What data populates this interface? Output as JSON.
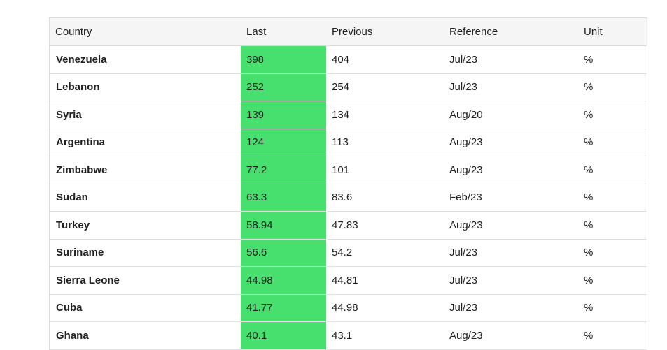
{
  "table": {
    "header": [
      "Country",
      "Last",
      "Previous",
      "Reference",
      "Unit"
    ],
    "rows": [
      [
        "Venezuela",
        "398",
        "404",
        "Jul/23",
        "%"
      ],
      [
        "Lebanon",
        "252",
        "254",
        "Jul/23",
        "%"
      ],
      [
        "Syria",
        "139",
        "134",
        "Aug/20",
        "%"
      ],
      [
        "Argentina",
        "124",
        "113",
        "Aug/23",
        "%"
      ],
      [
        "Zimbabwe",
        "77.2",
        "101",
        "Aug/23",
        "%"
      ],
      [
        "Sudan",
        "63.3",
        "83.6",
        "Feb/23",
        "%"
      ],
      [
        "Turkey",
        "58.94",
        "47.83",
        "Aug/23",
        "%"
      ],
      [
        "Suriname",
        "56.6",
        "54.2",
        "Jul/23",
        "%"
      ],
      [
        "Sierra Leone",
        "44.98",
        "44.81",
        "Jul/23",
        "%"
      ],
      [
        "Cuba",
        "41.77",
        "44.98",
        "Jul/23",
        "%"
      ],
      [
        "Ghana",
        "40.1",
        "43.1",
        "Aug/23",
        "%"
      ]
    ]
  }
}
